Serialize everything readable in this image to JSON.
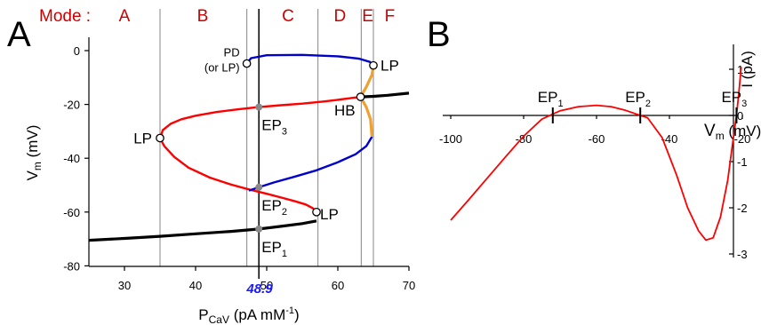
{
  "chart_data": [
    {
      "panel": "A",
      "type": "line",
      "xlabel": "P",
      "xlabel_sub": "CaV",
      "xlabel_unit": " (pA mM",
      "xlabel_sup": "-1",
      "xlabel_close": ")",
      "ylabel": "V",
      "ylabel_sub": "m",
      "ylabel_unit": " (mV)",
      "xlim": [
        25,
        70
      ],
      "ylim": [
        -80,
        5
      ],
      "xticks": [
        30,
        40,
        50,
        60,
        70
      ],
      "yticks": [
        0,
        -20,
        -40,
        -60,
        -80
      ],
      "mode_title": "Mode :",
      "mode_boundaries": [
        35,
        47.2,
        57.2,
        63.3,
        65.0
      ],
      "modes": [
        {
          "label": "A",
          "x": 30
        },
        {
          "label": "B",
          "x": 41
        },
        {
          "label": "C",
          "x": 53
        },
        {
          "label": "D",
          "x": 60.3
        },
        {
          "label": "E",
          "x": 64.2
        },
        {
          "label": "F",
          "x": 67.3
        }
      ],
      "highlight_x": 48.9,
      "highlight_label": "48.9",
      "series": [
        {
          "color": "#000000",
          "role": "lower stable branch",
          "points": [
            [
              25,
              -70.5
            ],
            [
              30,
              -69.8
            ],
            [
              35,
              -69.0
            ],
            [
              40,
              -68.1
            ],
            [
              45,
              -67.2
            ],
            [
              48.9,
              -66.3
            ],
            [
              52,
              -65.3
            ],
            [
              55,
              -64.3
            ],
            [
              57,
              -63.3
            ]
          ]
        },
        {
          "color": "#000000",
          "role": "upper stable branch",
          "points": [
            [
              63.2,
              -17.2
            ],
            [
              65,
              -17.0
            ],
            [
              67,
              -16.6
            ],
            [
              70,
              -15.8
            ]
          ]
        },
        {
          "color": "#ff0000",
          "role": "unstable branch",
          "points": [
            [
              57,
              -60.0
            ],
            [
              56.5,
              -58.6
            ],
            [
              55.5,
              -57.2
            ],
            [
              54,
              -56.0
            ],
            [
              52,
              -54.6
            ],
            [
              50,
              -53.2
            ],
            [
              48.9,
              -52.5
            ],
            [
              47.5,
              -51.6
            ],
            [
              45,
              -49.8
            ],
            [
              42,
              -47.2
            ],
            [
              39,
              -43.5
            ],
            [
              37,
              -39.5
            ],
            [
              35.6,
              -35.5
            ],
            [
              35,
              -32.5
            ],
            [
              35.4,
              -29.5
            ],
            [
              36.5,
              -27.2
            ],
            [
              38,
              -25.5
            ],
            [
              40,
              -24.2
            ],
            [
              43,
              -22.8
            ],
            [
              46,
              -21.8
            ],
            [
              48.9,
              -21.0
            ],
            [
              52,
              -20.3
            ],
            [
              55,
              -19.7
            ],
            [
              58,
              -18.9
            ],
            [
              60,
              -18.3
            ],
            [
              62,
              -17.6
            ],
            [
              63.2,
              -17.2
            ]
          ]
        },
        {
          "color": "#0000cc",
          "role": "unstable branch",
          "points": [
            [
              47.5,
              -52.0
            ],
            [
              48.9,
              -50.8
            ],
            [
              51,
              -49.0
            ],
            [
              54,
              -46.8
            ],
            [
              57,
              -44.5
            ],
            [
              60,
              -41.5
            ],
            [
              62.5,
              -38.5
            ],
            [
              64,
              -35.5
            ],
            [
              64.8,
              -32.0
            ]
          ]
        },
        {
          "color": "#0000cc",
          "role": "periodic branch",
          "points": [
            [
              47.2,
              -4.8
            ],
            [
              47.8,
              -2.8
            ],
            [
              50,
              -1.7
            ],
            [
              55,
              -1.6
            ],
            [
              60,
              -2.1
            ],
            [
              63,
              -3.0
            ],
            [
              64.5,
              -4.2
            ],
            [
              65,
              -5.5
            ]
          ]
        },
        {
          "color": "#f0a030",
          "role": "periodic branch",
          "points": [
            [
              63.2,
              -17.2
            ],
            [
              64,
              -13.5
            ],
            [
              64.8,
              -9.0
            ],
            [
              65,
              -5.5
            ]
          ]
        },
        {
          "color": "#f0a030",
          "role": "periodic branch",
          "points": [
            [
              63.2,
              -17.2
            ],
            [
              64,
              -21.0
            ],
            [
              64.6,
              -25.5
            ],
            [
              64.8,
              -32.0
            ]
          ]
        },
        {
          "color": "#f0a030",
          "role": "periodic branch",
          "points": [
            [
              47.2,
              -4.8
            ],
            [
              47.5,
              -4.3
            ]
          ]
        }
      ],
      "special_points": [
        {
          "label": "LP",
          "x": 35.0,
          "y": -32.5,
          "style": "open"
        },
        {
          "label": "LP",
          "x": 57.0,
          "y": -60.0,
          "style": "open"
        },
        {
          "label": "LP",
          "x": 65.0,
          "y": -5.5,
          "style": "open"
        },
        {
          "label": "HB",
          "x": 63.2,
          "y": -17.2,
          "style": "open"
        },
        {
          "label": "PD",
          "label2": "(or LP)",
          "x": 47.2,
          "y": -4.8,
          "style": "open"
        },
        {
          "label": "EP",
          "sub": "1",
          "x": 48.9,
          "y": -66.3,
          "style": "gray"
        },
        {
          "label": "EP",
          "sub": "2",
          "x": 48.9,
          "y": -50.8,
          "style": "gray"
        },
        {
          "label": "EP",
          "sub": "3",
          "x": 48.9,
          "y": -21.0,
          "style": "gray"
        }
      ]
    },
    {
      "panel": "B",
      "type": "line",
      "xlabel": "V",
      "xlabel_sub": "m",
      "xlabel_unit": " (mV)",
      "ylabel": "I (pA)",
      "xlim": [
        -100,
        -18
      ],
      "ylim": [
        -3,
        1
      ],
      "xticks": [
        -100,
        -80,
        -60,
        -40,
        -20
      ],
      "yticks": [
        1,
        0,
        -1,
        -2,
        -3
      ],
      "series": [
        {
          "color": "#ff0000",
          "role": "I-V curve",
          "points": [
            [
              -100,
              -2.27
            ],
            [
              -95,
              -1.82
            ],
            [
              -90,
              -1.36
            ],
            [
              -85,
              -0.9
            ],
            [
              -80,
              -0.45
            ],
            [
              -75,
              -0.08
            ],
            [
              -72,
              0.03
            ],
            [
              -70,
              0.1
            ],
            [
              -65,
              0.19
            ],
            [
              -60,
              0.22
            ],
            [
              -56,
              0.19
            ],
            [
              -52,
              0.11
            ],
            [
              -48,
              0.0
            ],
            [
              -46,
              -0.05
            ],
            [
              -42,
              -0.48
            ],
            [
              -38,
              -1.3
            ],
            [
              -35,
              -2.0
            ],
            [
              -32,
              -2.5
            ],
            [
              -30,
              -2.7
            ],
            [
              -28,
              -2.65
            ],
            [
              -26,
              -2.2
            ],
            [
              -24,
              -1.4
            ],
            [
              -22.5,
              -0.5
            ],
            [
              -21.6,
              0.0
            ],
            [
              -21,
              0.45
            ],
            [
              -20.5,
              0.9
            ],
            [
              -20.3,
              1.05
            ]
          ]
        }
      ],
      "equilibrium_points": [
        {
          "label": "EP",
          "sub": "1",
          "x": -72
        },
        {
          "label": "EP",
          "sub": "2",
          "x": -48
        },
        {
          "label": "EP",
          "sub": "3",
          "x": -21.6
        }
      ]
    }
  ]
}
